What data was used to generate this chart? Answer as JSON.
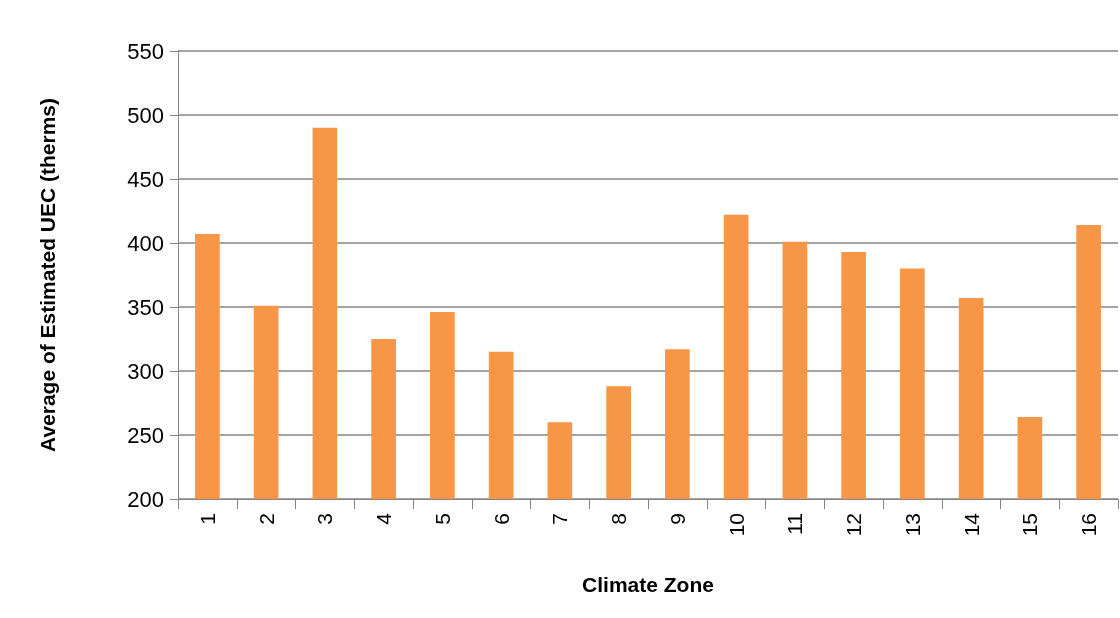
{
  "chart_data": {
    "type": "bar",
    "xlabel": "Climate Zone",
    "ylabel": "Average of Estimated UEC (therms)",
    "categories": [
      "1",
      "2",
      "3",
      "4",
      "5",
      "6",
      "7",
      "8",
      "9",
      "10",
      "11",
      "12",
      "13",
      "14",
      "15",
      "16"
    ],
    "values": [
      407,
      351,
      490,
      325,
      346,
      315,
      260,
      288,
      317,
      422,
      401,
      393,
      380,
      357,
      264,
      414
    ],
    "color": "#f79646",
    "ylim": [
      200,
      550
    ],
    "yticks": [
      200,
      250,
      300,
      350,
      400,
      450,
      500,
      550
    ],
    "grid": "y"
  }
}
